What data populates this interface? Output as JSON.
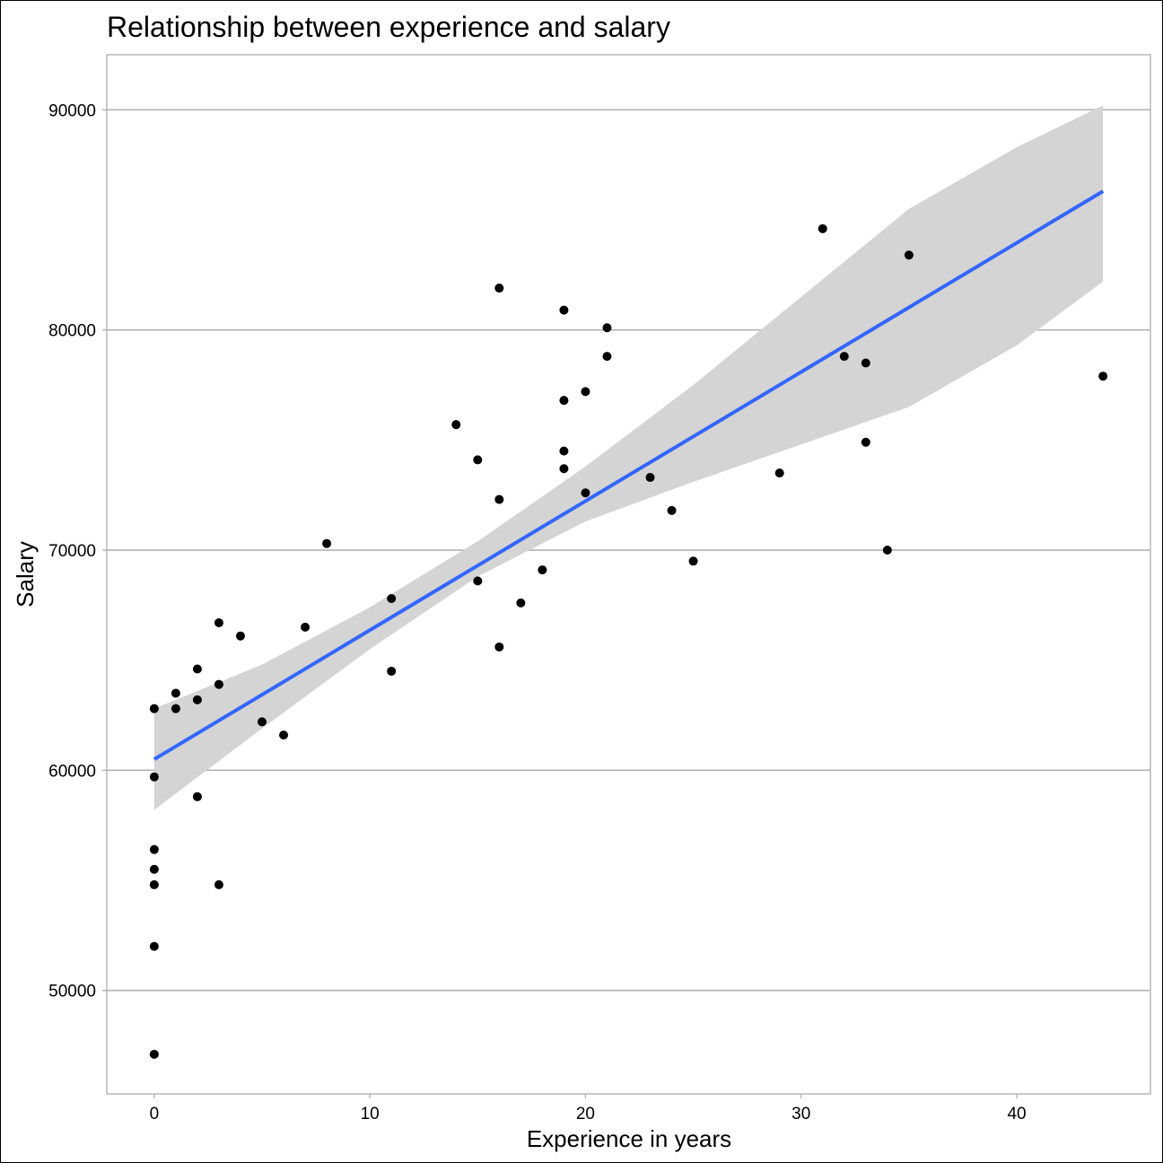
{
  "chart_data": {
    "type": "scatter",
    "title": "Relationship between experience and salary",
    "xlabel": "Experience in years",
    "ylabel": "Salary",
    "xlim": [
      -2.2,
      46.2
    ],
    "ylim": [
      45300,
      92500
    ],
    "x_ticks": [
      0,
      10,
      20,
      30,
      40
    ],
    "y_ticks": [
      50000,
      60000,
      70000,
      80000,
      90000
    ],
    "grid": {
      "horizontal_major": true,
      "vertical": false
    },
    "points": [
      {
        "x": 0,
        "y": 62800
      },
      {
        "x": 0,
        "y": 59700
      },
      {
        "x": 0,
        "y": 56400
      },
      {
        "x": 0,
        "y": 55500
      },
      {
        "x": 0,
        "y": 54800
      },
      {
        "x": 0,
        "y": 52000
      },
      {
        "x": 0,
        "y": 47100
      },
      {
        "x": 1,
        "y": 63500
      },
      {
        "x": 1,
        "y": 62800
      },
      {
        "x": 2,
        "y": 64600
      },
      {
        "x": 2,
        "y": 63200
      },
      {
        "x": 2,
        "y": 58800
      },
      {
        "x": 3,
        "y": 66700
      },
      {
        "x": 3,
        "y": 63900
      },
      {
        "x": 3,
        "y": 54800
      },
      {
        "x": 4,
        "y": 66100
      },
      {
        "x": 5,
        "y": 62200
      },
      {
        "x": 6,
        "y": 61600
      },
      {
        "x": 7,
        "y": 66500
      },
      {
        "x": 8,
        "y": 70300
      },
      {
        "x": 11,
        "y": 67800
      },
      {
        "x": 11,
        "y": 64500
      },
      {
        "x": 14,
        "y": 75700
      },
      {
        "x": 15,
        "y": 74100
      },
      {
        "x": 15,
        "y": 68600
      },
      {
        "x": 16,
        "y": 81900
      },
      {
        "x": 16,
        "y": 72300
      },
      {
        "x": 16,
        "y": 65600
      },
      {
        "x": 17,
        "y": 67600
      },
      {
        "x": 18,
        "y": 69100
      },
      {
        "x": 19,
        "y": 80900
      },
      {
        "x": 19,
        "y": 76800
      },
      {
        "x": 19,
        "y": 74500
      },
      {
        "x": 19,
        "y": 73700
      },
      {
        "x": 20,
        "y": 77200
      },
      {
        "x": 20,
        "y": 72600
      },
      {
        "x": 21,
        "y": 80100
      },
      {
        "x": 21,
        "y": 78800
      },
      {
        "x": 23,
        "y": 73300
      },
      {
        "x": 24,
        "y": 71800
      },
      {
        "x": 25,
        "y": 69500
      },
      {
        "x": 29,
        "y": 73500
      },
      {
        "x": 31,
        "y": 84600
      },
      {
        "x": 32,
        "y": 78800
      },
      {
        "x": 33,
        "y": 78500
      },
      {
        "x": 33,
        "y": 74900
      },
      {
        "x": 34,
        "y": 70000
      },
      {
        "x": 35,
        "y": 83400
      },
      {
        "x": 44,
        "y": 77900
      }
    ],
    "fit_line": {
      "method": "linear",
      "color": "#3366FF",
      "x": [
        0,
        44
      ],
      "y": [
        60500,
        86300
      ]
    },
    "confidence_band": {
      "color": "#d4d4d4",
      "x": [
        0,
        5,
        10,
        15,
        20,
        25,
        30,
        35,
        40,
        44
      ],
      "lower": [
        58200,
        61900,
        65500,
        68800,
        71300,
        73100,
        74800,
        76500,
        79300,
        82200
      ],
      "upper": [
        62800,
        64800,
        67400,
        70400,
        73800,
        77500,
        81500,
        85500,
        88300,
        90200
      ]
    }
  }
}
